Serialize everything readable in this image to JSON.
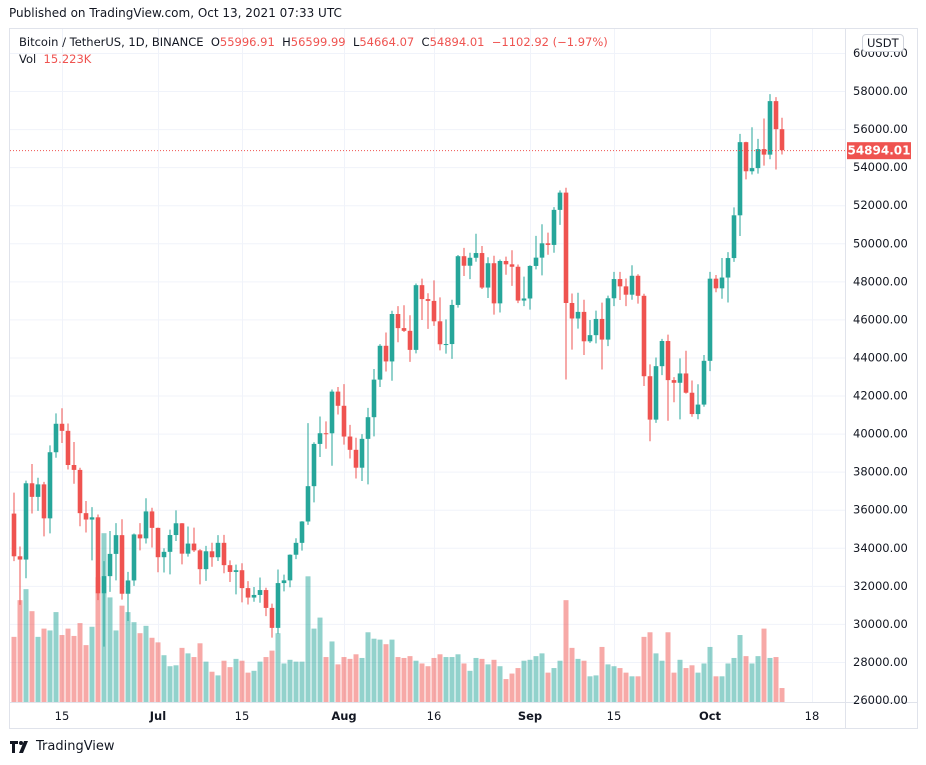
{
  "published": "Published on TradingView.com, Oct 13, 2021 07:33 UTC",
  "legend": {
    "symbol": "Bitcoin / TetherUS, 1D, BINANCE",
    "o_label": "O",
    "o": "55996.91",
    "h_label": "H",
    "h": "56599.99",
    "l_label": "L",
    "l": "54664.07",
    "c_label": "C",
    "c": "54894.01",
    "change": "−1102.92 (−1.97%)",
    "vol_label": "Vol",
    "vol": "15.223K"
  },
  "currency": "USDT",
  "last_price_label": "54894.01",
  "footer": {
    "brand": "TradingView",
    "logo_icon": "tradingview-logo-icon"
  },
  "colors": {
    "up": "#26a69a",
    "down": "#ef5350",
    "grid": "#f0f3fa",
    "text": "#131722"
  },
  "chart_data": {
    "type": "candlestick",
    "ylim": [
      26000,
      60000
    ],
    "price_ticks": [
      "60000.00",
      "58000.00",
      "56000.00",
      "54000.00",
      "52000.00",
      "50000.00",
      "48000.00",
      "46000.00",
      "44000.00",
      "42000.00",
      "40000.00",
      "38000.00",
      "36000.00",
      "34000.00",
      "32000.00",
      "30000.00",
      "28000.00",
      "26000.00"
    ],
    "time_ticks": [
      {
        "label": "15",
        "date": "2021-06-15",
        "bold": false
      },
      {
        "label": "Jul",
        "date": "2021-07-01",
        "bold": true
      },
      {
        "label": "15",
        "date": "2021-07-15",
        "bold": false
      },
      {
        "label": "Aug",
        "date": "2021-08-01",
        "bold": true
      },
      {
        "label": "16",
        "date": "2021-08-16",
        "bold": false
      },
      {
        "label": "Sep",
        "date": "2021-09-01",
        "bold": true
      },
      {
        "label": "15",
        "date": "2021-09-15",
        "bold": false
      },
      {
        "label": "Oct",
        "date": "2021-10-01",
        "bold": true
      },
      {
        "label": "18",
        "date": "2021-10-18",
        "bold": false
      }
    ],
    "volume_unit": "K",
    "columns": [
      "date",
      "open",
      "high",
      "low",
      "close",
      "volume"
    ],
    "candles": [
      [
        "2021-06-07",
        35796,
        36900,
        33300,
        33552,
        71
      ],
      [
        "2021-06-08",
        33552,
        34068,
        31000,
        33380,
        111
      ],
      [
        "2021-06-09",
        33380,
        37530,
        32396,
        37389,
        123
      ],
      [
        "2021-06-10",
        37389,
        38400,
        35800,
        36675,
        99
      ],
      [
        "2021-06-11",
        36675,
        37680,
        35937,
        37331,
        71
      ],
      [
        "2021-06-12",
        37331,
        37463,
        34600,
        35546,
        80
      ],
      [
        "2021-06-13",
        35546,
        39380,
        34757,
        39020,
        78
      ],
      [
        "2021-06-14",
        39020,
        41064,
        38730,
        40516,
        98
      ],
      [
        "2021-06-15",
        40516,
        41330,
        39506,
        40144,
        73
      ],
      [
        "2021-06-16",
        40144,
        40528,
        38116,
        38349,
        80
      ],
      [
        "2021-06-17",
        38349,
        39560,
        37365,
        38092,
        72
      ],
      [
        "2021-06-18",
        38092,
        38202,
        35129,
        35819,
        86
      ],
      [
        "2021-06-19",
        35819,
        36457,
        34803,
        35483,
        62
      ],
      [
        "2021-06-20",
        35483,
        36137,
        33336,
        35600,
        82
      ],
      [
        "2021-06-21",
        35600,
        35750,
        31251,
        31608,
        136
      ],
      [
        "2021-06-22",
        31608,
        33298,
        28805,
        32509,
        184
      ],
      [
        "2021-06-23",
        32509,
        34881,
        31683,
        33678,
        114
      ],
      [
        "2021-06-24",
        33678,
        35298,
        32286,
        34663,
        78
      ],
      [
        "2021-06-25",
        34663,
        35500,
        31275,
        31584,
        105
      ],
      [
        "2021-06-26",
        31584,
        32730,
        30151,
        32283,
        98
      ],
      [
        "2021-06-27",
        32283,
        34749,
        32000,
        34700,
        87
      ],
      [
        "2021-06-28",
        34700,
        35297,
        33862,
        34494,
        75
      ],
      [
        "2021-06-29",
        34494,
        36600,
        34225,
        35911,
        83
      ],
      [
        "2021-06-30",
        35911,
        36100,
        34017,
        35045,
        70
      ],
      [
        "2021-07-01",
        35045,
        35057,
        32711,
        33504,
        65
      ],
      [
        "2021-07-02",
        33504,
        33977,
        32699,
        33786,
        51
      ],
      [
        "2021-07-03",
        33786,
        34951,
        32600,
        34669,
        39
      ],
      [
        "2021-07-04",
        34669,
        35967,
        34357,
        35287,
        40
      ],
      [
        "2021-07-05",
        35287,
        35293,
        33125,
        33690,
        59
      ],
      [
        "2021-07-06",
        33690,
        35118,
        33532,
        34220,
        53
      ],
      [
        "2021-07-07",
        34220,
        35059,
        33777,
        33863,
        49
      ],
      [
        "2021-07-08",
        33863,
        33929,
        32077,
        32875,
        64
      ],
      [
        "2021-07-09",
        32875,
        34100,
        32261,
        33815,
        44
      ],
      [
        "2021-07-10",
        33815,
        34262,
        33004,
        33502,
        33
      ],
      [
        "2021-07-11",
        33502,
        34666,
        33306,
        34259,
        29
      ],
      [
        "2021-07-12",
        34259,
        34679,
        32658,
        33086,
        45
      ],
      [
        "2021-07-13",
        33086,
        33340,
        32202,
        32729,
        38
      ],
      [
        "2021-07-14",
        32729,
        33114,
        31550,
        32820,
        47
      ],
      [
        "2021-07-15",
        32820,
        33185,
        31133,
        31880,
        45
      ],
      [
        "2021-07-16",
        31880,
        32249,
        31020,
        31383,
        32
      ],
      [
        "2021-07-17",
        31383,
        31935,
        31165,
        31520,
        34
      ],
      [
        "2021-07-18",
        31520,
        32435,
        31108,
        31778,
        44
      ],
      [
        "2021-07-19",
        31778,
        31899,
        30407,
        30839,
        49
      ],
      [
        "2021-07-20",
        30839,
        31063,
        29278,
        29790,
        56
      ],
      [
        "2021-07-21",
        29790,
        32858,
        29482,
        32144,
        75
      ],
      [
        "2021-07-22",
        32144,
        32591,
        31708,
        32287,
        42
      ],
      [
        "2021-07-23",
        32287,
        33650,
        31925,
        33634,
        46
      ],
      [
        "2021-07-24",
        33634,
        34500,
        33401,
        34258,
        44
      ],
      [
        "2021-07-25",
        34258,
        35398,
        33851,
        35381,
        44
      ],
      [
        "2021-07-26",
        35381,
        40550,
        35205,
        37237,
        137
      ],
      [
        "2021-07-27",
        37237,
        39542,
        36383,
        39457,
        80
      ],
      [
        "2021-07-28",
        39457,
        40900,
        38772,
        40019,
        92
      ],
      [
        "2021-07-29",
        40019,
        40640,
        39200,
        40016,
        49
      ],
      [
        "2021-07-30",
        40016,
        42316,
        38313,
        42206,
        66
      ],
      [
        "2021-07-31",
        42206,
        42448,
        41000,
        41461,
        41
      ],
      [
        "2021-08-01",
        41461,
        42599,
        39422,
        39845,
        49
      ],
      [
        "2021-08-02",
        39845,
        40459,
        38690,
        39147,
        47
      ],
      [
        "2021-08-03",
        39147,
        39780,
        37642,
        38207,
        52
      ],
      [
        "2021-08-04",
        38207,
        39969,
        37508,
        39723,
        48
      ],
      [
        "2021-08-05",
        39723,
        41350,
        37332,
        40862,
        76
      ],
      [
        "2021-08-06",
        40862,
        43392,
        39853,
        42836,
        69
      ],
      [
        "2021-08-07",
        42836,
        44700,
        42446,
        44614,
        68
      ],
      [
        "2021-08-08",
        44614,
        45310,
        43261,
        43792,
        63
      ],
      [
        "2021-08-09",
        43792,
        46454,
        42779,
        46284,
        68
      ],
      [
        "2021-08-10",
        46284,
        46700,
        44800,
        45543,
        49
      ],
      [
        "2021-08-11",
        45543,
        46743,
        45341,
        45400,
        48
      ],
      [
        "2021-08-12",
        45400,
        46218,
        43770,
        44399,
        50
      ],
      [
        "2021-08-13",
        44399,
        47886,
        44217,
        47800,
        45
      ],
      [
        "2021-08-14",
        47800,
        48144,
        45971,
        47068,
        42
      ],
      [
        "2021-08-15",
        47068,
        47372,
        45500,
        46973,
        39
      ],
      [
        "2021-08-16",
        46973,
        48053,
        45660,
        45901,
        48
      ],
      [
        "2021-08-17",
        45901,
        47160,
        44376,
        44695,
        52
      ],
      [
        "2021-08-18",
        44695,
        46000,
        44203,
        44705,
        49
      ],
      [
        "2021-08-19",
        44705,
        47033,
        43927,
        46760,
        49
      ],
      [
        "2021-08-20",
        46760,
        49382,
        46622,
        49322,
        52
      ],
      [
        "2021-08-21",
        49322,
        49757,
        48280,
        48821,
        42
      ],
      [
        "2021-08-22",
        48821,
        49500,
        48115,
        49239,
        34
      ],
      [
        "2021-08-23",
        49239,
        50500,
        49029,
        49488,
        48
      ],
      [
        "2021-08-24",
        49488,
        49860,
        47600,
        47674,
        47
      ],
      [
        "2021-08-25",
        47674,
        49264,
        47126,
        48953,
        41
      ],
      [
        "2021-08-26",
        48953,
        49347,
        46250,
        46843,
        46
      ],
      [
        "2021-08-27",
        46843,
        49149,
        46364,
        49070,
        39
      ],
      [
        "2021-08-28",
        49070,
        49300,
        48345,
        48895,
        25
      ],
      [
        "2021-08-29",
        48895,
        49632,
        47762,
        48767,
        31
      ],
      [
        "2021-08-30",
        48767,
        48888,
        46853,
        46990,
        37
      ],
      [
        "2021-08-31",
        46990,
        48246,
        46700,
        47100,
        45
      ],
      [
        "2021-09-01",
        47100,
        48843,
        46512,
        48810,
        46
      ],
      [
        "2021-09-02",
        48810,
        50392,
        48630,
        49246,
        50
      ],
      [
        "2021-09-03",
        49246,
        51000,
        48316,
        49999,
        53
      ],
      [
        "2021-09-04",
        49999,
        50558,
        49400,
        49915,
        32
      ],
      [
        "2021-09-05",
        49915,
        51900,
        49500,
        51756,
        37
      ],
      [
        "2021-09-06",
        51756,
        52780,
        50969,
        52663,
        45
      ],
      [
        "2021-09-07",
        52663,
        52920,
        42843,
        46863,
        111
      ],
      [
        "2021-09-08",
        46863,
        47359,
        44412,
        46048,
        59
      ],
      [
        "2021-09-09",
        46048,
        47400,
        45513,
        46395,
        47
      ],
      [
        "2021-09-10",
        46395,
        47033,
        44132,
        44850,
        45
      ],
      [
        "2021-09-11",
        44850,
        45969,
        44770,
        45173,
        28
      ],
      [
        "2021-09-12",
        45173,
        46460,
        44742,
        46025,
        29
      ],
      [
        "2021-09-13",
        46025,
        46880,
        43370,
        44940,
        60
      ],
      [
        "2021-09-14",
        44940,
        47250,
        44594,
        47111,
        41
      ],
      [
        "2021-09-15",
        47111,
        48500,
        46700,
        48121,
        39
      ],
      [
        "2021-09-16",
        48121,
        48500,
        47020,
        47737,
        37
      ],
      [
        "2021-09-17",
        47737,
        48150,
        46700,
        47299,
        32
      ],
      [
        "2021-09-18",
        47299,
        48843,
        47033,
        48293,
        28
      ],
      [
        "2021-09-19",
        48293,
        48372,
        46829,
        47241,
        28
      ],
      [
        "2021-09-20",
        47241,
        47347,
        42500,
        43015,
        71
      ],
      [
        "2021-09-21",
        43015,
        43639,
        39600,
        40734,
        76
      ],
      [
        "2021-09-22",
        40734,
        44000,
        40565,
        43543,
        53
      ],
      [
        "2021-09-23",
        43543,
        44978,
        43069,
        44865,
        45
      ],
      [
        "2021-09-24",
        44865,
        45200,
        40675,
        42810,
        76
      ],
      [
        "2021-09-25",
        42810,
        42966,
        41646,
        42670,
        32
      ],
      [
        "2021-09-26",
        42670,
        43950,
        40750,
        43160,
        46
      ],
      [
        "2021-09-27",
        43160,
        44350,
        42098,
        42147,
        37
      ],
      [
        "2021-09-28",
        42147,
        42787,
        40888,
        41026,
        40
      ],
      [
        "2021-09-29",
        41026,
        42590,
        40753,
        41524,
        32
      ],
      [
        "2021-09-30",
        41524,
        44132,
        41410,
        43824,
        42
      ],
      [
        "2021-10-01",
        43824,
        48495,
        43283,
        48141,
        60
      ],
      [
        "2021-10-02",
        48141,
        48336,
        47430,
        47634,
        28
      ],
      [
        "2021-10-03",
        47634,
        49228,
        47088,
        48200,
        28
      ],
      [
        "2021-10-04",
        48200,
        49536,
        46891,
        49224,
        42
      ],
      [
        "2021-10-05",
        49224,
        51886,
        49022,
        51471,
        48
      ],
      [
        "2021-10-06",
        51471,
        55750,
        50382,
        55315,
        73
      ],
      [
        "2021-10-07",
        55315,
        55338,
        53357,
        53785,
        50
      ],
      [
        "2021-10-08",
        53785,
        56100,
        53617,
        53951,
        42
      ],
      [
        "2021-10-09",
        53951,
        55489,
        53661,
        54949,
        50
      ],
      [
        "2021-10-10",
        54949,
        56561,
        54080,
        54659,
        80
      ],
      [
        "2021-10-11",
        54659,
        57839,
        54415,
        57471,
        48
      ],
      [
        "2021-10-12",
        57471,
        57680,
        53879,
        55996.91,
        49
      ],
      [
        "2021-10-13",
        55996.91,
        56599.99,
        54664.07,
        54894.01,
        15.223
      ]
    ]
  }
}
